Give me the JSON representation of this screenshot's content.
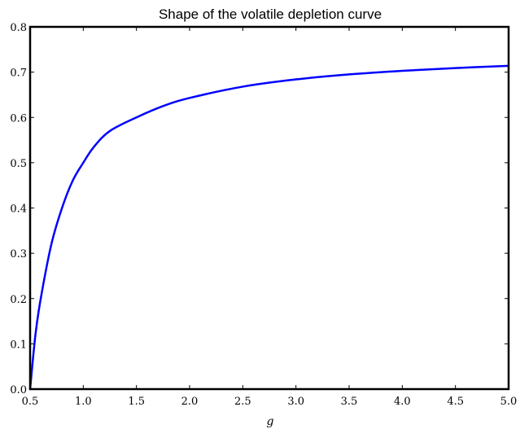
{
  "chart_data": {
    "type": "line",
    "title": "Shape of the volatile depletion curve",
    "xlabel": "g",
    "ylabel": "",
    "xlim": [
      0.5,
      5.0
    ],
    "ylim": [
      0.0,
      0.8
    ],
    "x_ticks": [
      "0.5",
      "1.0",
      "1.5",
      "2.0",
      "2.5",
      "3.0",
      "3.5",
      "4.0",
      "4.5",
      "5.0"
    ],
    "y_ticks": [
      "0.0",
      "0.1",
      "0.2",
      "0.3",
      "0.4",
      "0.5",
      "0.6",
      "0.7",
      "0.8"
    ],
    "grid": false,
    "series": [
      {
        "color": "#0000ff",
        "x": [
          0.5,
          0.55,
          0.6,
          0.7,
          0.8,
          0.9,
          1.0,
          1.1,
          1.25,
          1.5,
          1.75,
          2.0,
          2.5,
          3.0,
          3.5,
          4.0,
          4.5,
          5.0
        ],
        "y": [
          0.0,
          0.12,
          0.2,
          0.32,
          0.4,
          0.46,
          0.5,
          0.535,
          0.57,
          0.6,
          0.625,
          0.643,
          0.668,
          0.684,
          0.695,
          0.703,
          0.709,
          0.714
        ]
      }
    ]
  }
}
